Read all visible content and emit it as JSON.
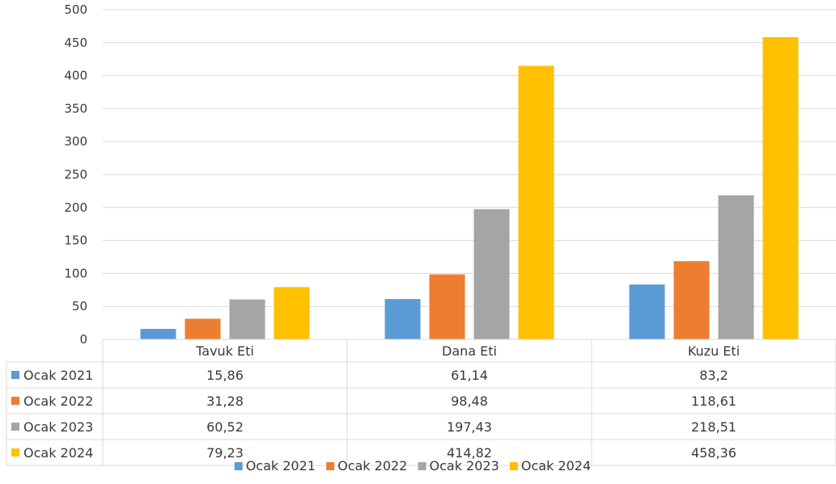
{
  "chart_data": {
    "type": "bar",
    "categories": [
      "Tavuk Eti",
      "Dana Eti",
      "Kuzu Eti"
    ],
    "series": [
      {
        "name": "Ocak 2021",
        "color": "#5b9bd5",
        "values": [
          15.86,
          61.14,
          83.2
        ],
        "labels": [
          "15,86",
          "61,14",
          "83,2"
        ]
      },
      {
        "name": "Ocak 2022",
        "color": "#ed7d31",
        "values": [
          31.28,
          98.48,
          118.61
        ],
        "labels": [
          "31,28",
          "98,48",
          "118,61"
        ]
      },
      {
        "name": "Ocak 2023",
        "color": "#a5a5a5",
        "values": [
          60.52,
          197.43,
          218.51
        ],
        "labels": [
          "60,52",
          "197,43",
          "218,51"
        ]
      },
      {
        "name": "Ocak 2024",
        "color": "#ffc000",
        "values": [
          79.23,
          414.82,
          458.36
        ],
        "labels": [
          "79,23",
          "414,82",
          "458,36"
        ]
      }
    ],
    "yticks": [
      0,
      50,
      100,
      150,
      200,
      250,
      300,
      350,
      400,
      450,
      500
    ],
    "ylim": [
      0,
      500
    ],
    "grid": true,
    "data_table": true,
    "legend": "bottom"
  }
}
